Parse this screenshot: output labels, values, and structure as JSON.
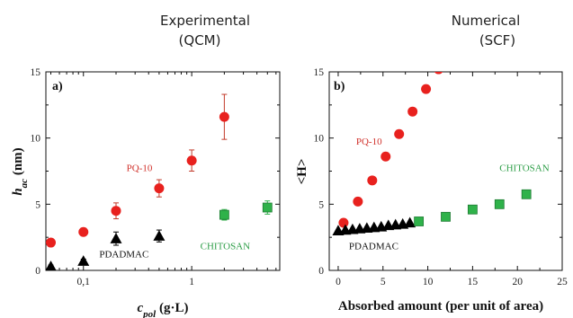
{
  "headings": {
    "left": [
      "Experimental",
      "(QCM)"
    ],
    "right": [
      "Numerical",
      "(SCF)"
    ]
  },
  "colors": {
    "pq10": "#e8211e",
    "pdadmac": "#000000",
    "chitosan": "#2fb24a",
    "annotation_red": "#d0302a",
    "annotation_green": "#2e9e48"
  },
  "chart_data": [
    {
      "type": "scatter",
      "panel_label": "a)",
      "xscale": "log",
      "xlim": [
        0.045,
        6.5
      ],
      "ylim": [
        0,
        15
      ],
      "xticks": [
        {
          "value": 0.1,
          "label": "0,1"
        },
        {
          "value": 1,
          "label": "1"
        }
      ],
      "yticks": [
        0,
        5,
        10,
        15
      ],
      "xlabel": {
        "main": "c",
        "sub": "pol",
        "unit": " (g·L)"
      },
      "ylabel": {
        "main": "h",
        "sub": "ac",
        "unit": " (nm)"
      },
      "series": [
        {
          "name": "PQ-10",
          "marker": "circle",
          "color": "#e8211e",
          "x": [
            0.05,
            0.1,
            0.2,
            0.5,
            1.0,
            2.0
          ],
          "y": [
            2.1,
            2.9,
            4.5,
            6.2,
            8.3,
            11.6
          ],
          "err": [
            0.15,
            0.2,
            0.6,
            0.65,
            0.8,
            1.7
          ]
        },
        {
          "name": "PDADMAC",
          "marker": "triangle",
          "color": "#000000",
          "x": [
            0.05,
            0.1,
            0.2,
            0.5
          ],
          "y": [
            0.3,
            0.7,
            2.4,
            2.6
          ],
          "err": [
            0.1,
            0.15,
            0.5,
            0.45
          ]
        },
        {
          "name": "CHITOSAN",
          "marker": "square",
          "color": "#2fb24a",
          "x": [
            2.0,
            5.0
          ],
          "y": [
            4.2,
            4.75
          ],
          "err": [
            0.4,
            0.5
          ]
        }
      ],
      "annotations": [
        {
          "text": "PQ-10",
          "color": "#d0302a",
          "x": 0.25,
          "y": 7.5
        },
        {
          "text": "PDADMAC",
          "color": "#111111",
          "x": 0.14,
          "y": 1.0
        },
        {
          "text": "CHITOSAN",
          "color": "#2e9e48",
          "x": 1.2,
          "y": 1.6
        }
      ]
    },
    {
      "type": "scatter",
      "panel_label": "b)",
      "xscale": "linear",
      "xlim": [
        -1,
        25
      ],
      "ylim": [
        0,
        15
      ],
      "xticks": [
        {
          "value": 0,
          "label": "0"
        },
        {
          "value": 5,
          "label": "5"
        },
        {
          "value": 10,
          "label": "10"
        },
        {
          "value": 15,
          "label": "15"
        },
        {
          "value": 20,
          "label": "20"
        },
        {
          "value": 25,
          "label": "25"
        }
      ],
      "yticks": [
        0,
        5,
        10,
        15
      ],
      "xlabel": "Absorbed amount (per unit of area)",
      "ylabel": "<H>",
      "series": [
        {
          "name": "PQ-10",
          "marker": "circle",
          "color": "#e8211e",
          "x": [
            0.6,
            2.2,
            3.8,
            5.3,
            6.8,
            8.3,
            9.8,
            11.2
          ],
          "y": [
            3.6,
            5.2,
            6.8,
            8.6,
            10.3,
            12.0,
            13.7,
            15.2
          ]
        },
        {
          "name": "PDADMAC",
          "marker": "triangle",
          "color": "#000000",
          "x": [
            0.0,
            0.8,
            1.6,
            2.4,
            3.2,
            4.0,
            4.8,
            5.6,
            6.4,
            7.2,
            8.0
          ],
          "y": [
            3.0,
            3.05,
            3.1,
            3.15,
            3.2,
            3.25,
            3.3,
            3.4,
            3.45,
            3.5,
            3.6
          ]
        },
        {
          "name": "CHITOSAN",
          "marker": "square",
          "color": "#2fb24a",
          "x": [
            9.0,
            12.0,
            15.0,
            18.0,
            21.0
          ],
          "y": [
            3.7,
            4.05,
            4.6,
            5.0,
            5.75
          ]
        }
      ],
      "annotations": [
        {
          "text": "PQ-10",
          "color": "#d0302a",
          "x": 2.0,
          "y": 9.5
        },
        {
          "text": "PDADMAC",
          "color": "#111111",
          "x": 1.2,
          "y": 1.6
        },
        {
          "text": "CHITOSAN",
          "color": "#2e9e48",
          "x": 18.0,
          "y": 7.5
        }
      ]
    }
  ]
}
